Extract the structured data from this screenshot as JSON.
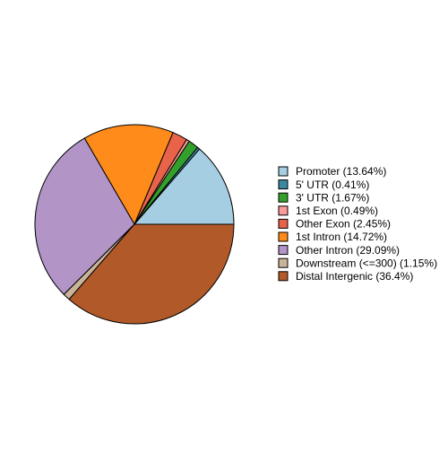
{
  "chart_data": {
    "type": "pie",
    "categories": [
      "Promoter (13.64%)",
      "5' UTR (0.41%)",
      "3' UTR (1.67%)",
      "1st Exon (0.49%)",
      "Other Exon (2.45%)",
      "1st Intron (14.72%)",
      "Other Intron (29.09%)",
      "Downstream (<=300) (1.15%)",
      "Distal Intergenic (36.4%)"
    ],
    "values": [
      13.64,
      0.41,
      1.67,
      0.49,
      2.45,
      14.72,
      29.09,
      1.15,
      36.4
    ],
    "colors": [
      "#a6cee3",
      "#3a89a0",
      "#33a02c",
      "#fb9a99",
      "#e8634a",
      "#ff8c1a",
      "#b294c7",
      "#c9b49a",
      "#b15928"
    ],
    "legend": "right"
  }
}
